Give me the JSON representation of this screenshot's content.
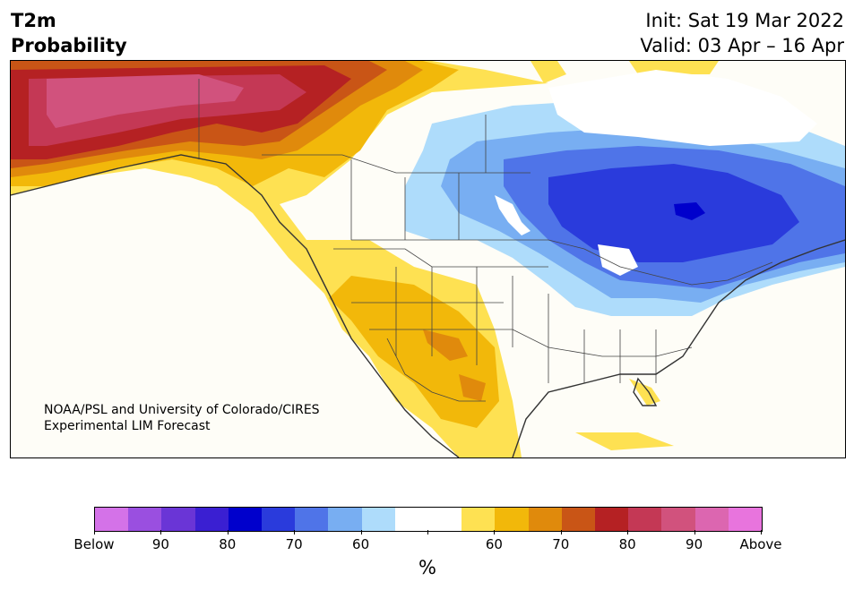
{
  "header": {
    "title_line1": "T2m",
    "title_line2": "Probability",
    "init_line": "Init: Sat 19 Mar 2022",
    "valid_line": "Valid: 03 Apr – 16 Apr"
  },
  "credit": {
    "line1": "NOAA/PSL and University of Colorado/CIRES",
    "line2": "Experimental LIM Forecast"
  },
  "map": {
    "region": "North America",
    "below_colors": [
      "#d472e8",
      "#9a4fe0",
      "#6a35d6",
      "#3a1fd2",
      "#0000cc",
      "#2a3bdc",
      "#4f74e8",
      "#78aef2",
      "#aedcfb"
    ],
    "neutral_color": "#ffffff",
    "above_colors": [
      "#fee152",
      "#f2b80a",
      "#e08a0c",
      "#c95516",
      "#b52123",
      "#c43855",
      "#d1527d",
      "#dc66b0",
      "#e874dd"
    ],
    "land_color": "#fefdf7"
  },
  "colorbar": {
    "labels": [
      "Below",
      "90",
      "80",
      "70",
      "60",
      "60",
      "70",
      "80",
      "90",
      "Above"
    ],
    "unit_label": "%"
  }
}
